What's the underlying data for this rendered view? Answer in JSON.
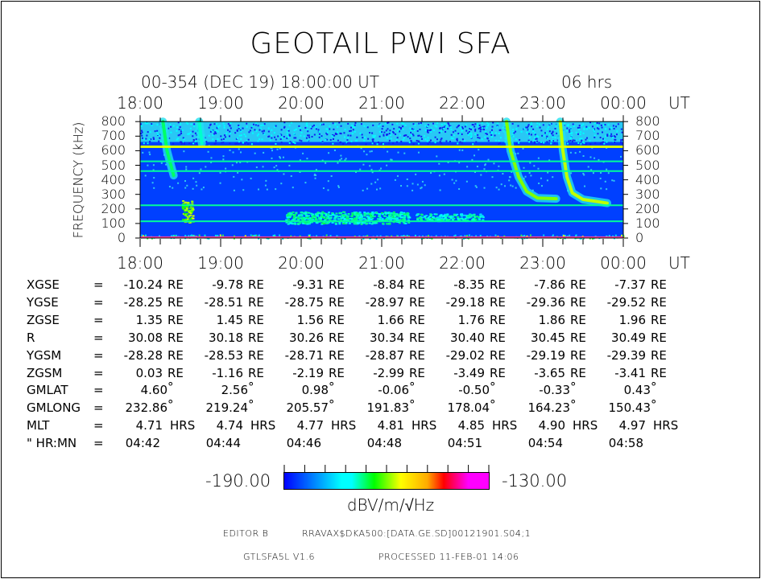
{
  "title": "GEOTAIL PWI SFA",
  "subtitle": "00-354 (DEC 19) 18:00:00 UT",
  "duration": "06 hrs",
  "chart_data": {
    "type": "heatmap",
    "title": "GEOTAIL PWI SFA",
    "xlabel": "UT",
    "ylabel": "FREQUENCY (kHz)",
    "x_ticks": [
      "18:00",
      "19:00",
      "20:00",
      "21:00",
      "22:00",
      "23:00",
      "00:00"
    ],
    "xlim": [
      "18:00",
      "00:00"
    ],
    "y_ticks": [
      "0",
      "100",
      "200",
      "300",
      "400",
      "500",
      "600",
      "700",
      "800"
    ],
    "ylim": [
      0,
      800
    ],
    "background_level_dbv": -188,
    "horizontal_lines": [
      {
        "freq_khz": 630,
        "level_dbv": -165
      },
      {
        "freq_khz": 527,
        "level_dbv": -178
      },
      {
        "freq_khz": 460,
        "level_dbv": -178
      },
      {
        "freq_khz": 225,
        "level_dbv": -178
      },
      {
        "freq_khz": 115,
        "level_dbv": -178
      }
    ],
    "bursts": [
      {
        "level_dbv": -176,
        "points": [
          [
            "18:17",
            800
          ],
          [
            "18:20",
            600
          ],
          [
            "18:25",
            430
          ]
        ]
      },
      {
        "level_dbv": -180,
        "points": [
          [
            "18:44",
            800
          ],
          [
            "18:46",
            650
          ]
        ]
      },
      {
        "level_dbv": -168,
        "points": [
          [
            "22:33",
            800
          ],
          [
            "22:36",
            600
          ],
          [
            "22:42",
            420
          ],
          [
            "22:48",
            320
          ],
          [
            "22:56",
            275
          ],
          [
            "23:10",
            270
          ]
        ]
      },
      {
        "level_dbv": -166,
        "points": [
          [
            "23:13",
            800
          ],
          [
            "23:15",
            600
          ],
          [
            "23:18",
            420
          ],
          [
            "23:22",
            310
          ],
          [
            "23:30",
            265
          ],
          [
            "23:48",
            240
          ]
        ]
      }
    ],
    "patches": [
      {
        "t0": "18:31",
        "t1": "18:39",
        "f0": 110,
        "f1": 260,
        "level_dbv": -168
      },
      {
        "t0": "19:48",
        "t1": "21:20",
        "f0": 100,
        "f1": 185,
        "level_dbv": -179
      },
      {
        "t0": "21:25",
        "t1": "22:15",
        "f0": 120,
        "f1": 170,
        "level_dbv": -180
      }
    ],
    "colorbar": {
      "min": -190.0,
      "max": -130.0,
      "min_label": "-190.00",
      "max_label": "-130.00",
      "unit": "dBV/m/√Hz"
    }
  },
  "ephemeris": {
    "rows": [
      {
        "label": "XGSE",
        "unit": "RE",
        "values": [
          "-10.24",
          "-9.78",
          "-9.31",
          "-8.84",
          "-8.35",
          "-7.86",
          "-7.37"
        ]
      },
      {
        "label": "YGSE",
        "unit": "RE",
        "values": [
          "-28.25",
          "-28.51",
          "-28.75",
          "-28.97",
          "-29.18",
          "-29.36",
          "-29.52"
        ]
      },
      {
        "label": "ZGSE",
        "unit": "RE",
        "values": [
          "1.35",
          "1.45",
          "1.56",
          "1.66",
          "1.76",
          "1.86",
          "1.96"
        ]
      },
      {
        "label": "R",
        "unit": "RE",
        "values": [
          "30.08",
          "30.18",
          "30.26",
          "30.34",
          "30.40",
          "30.45",
          "30.49"
        ]
      },
      {
        "label": "YGSM",
        "unit": "RE",
        "values": [
          "-28.28",
          "-28.53",
          "-28.71",
          "-28.87",
          "-29.02",
          "-29.19",
          "-29.39"
        ]
      },
      {
        "label": "ZGSM",
        "unit": "RE",
        "values": [
          "0.03",
          "-1.16",
          "-2.19",
          "-2.99",
          "-3.49",
          "-3.65",
          "-3.41"
        ]
      },
      {
        "label": "GMLAT",
        "unit": "°",
        "values": [
          "4.60",
          "2.56",
          "0.98",
          "-0.06",
          "-0.50",
          "-0.33",
          "0.43"
        ]
      },
      {
        "label": "GMLONG",
        "unit": "°",
        "values": [
          "232.86",
          "219.24",
          "205.57",
          "191.83",
          "178.04",
          "164.23",
          "150.43"
        ]
      },
      {
        "label": "MLT",
        "unit": "HRS",
        "values": [
          "4.71",
          "4.74",
          "4.77",
          "4.81",
          "4.85",
          "4.90",
          "4.97"
        ]
      },
      {
        "label": "\" HR:MN",
        "unit": "",
        "values": [
          "04:42",
          "04:44",
          "04:46",
          "04:48",
          "04:51",
          "04:54",
          "04:58"
        ]
      }
    ]
  },
  "footer": {
    "editor": "EDITOR B",
    "file": "RRAVAX$DKA500:[DATA.GE.SD]00121901.S04;1",
    "program": "GTLSFA5L V1.6",
    "processed": "PROCESSED 11-FEB-01  14:06"
  }
}
